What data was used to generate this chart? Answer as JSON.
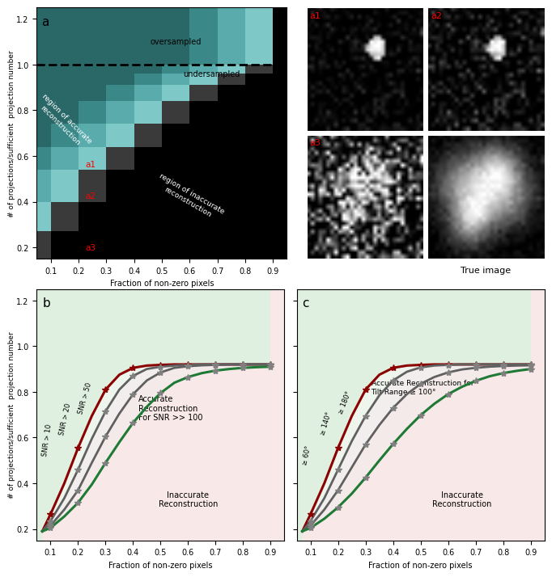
{
  "xlabel": "Fraction of non-zero pixels",
  "ylabel": "# of projections/sufficient  projection number",
  "xlim": [
    0.05,
    0.95
  ],
  "ylim": [
    0.15,
    1.25
  ],
  "xticks": [
    0.1,
    0.2,
    0.3,
    0.4,
    0.5,
    0.6,
    0.7,
    0.8,
    0.9
  ],
  "yticks": [
    0.2,
    0.4,
    0.6,
    0.8,
    1.0,
    1.2
  ],
  "stair_y_bounds": [
    0.15,
    0.27,
    0.4,
    0.54,
    0.64,
    0.74,
    0.84,
    0.91,
    0.96,
    1.0
  ],
  "snr_b_x": [
    0.07,
    0.1,
    0.15,
    0.2,
    0.25,
    0.3,
    0.35,
    0.4,
    0.45,
    0.5,
    0.55,
    0.6,
    0.65,
    0.7,
    0.75,
    0.8,
    0.85,
    0.9
  ],
  "snr_b_high100": [
    0.19,
    0.265,
    0.4,
    0.555,
    0.695,
    0.81,
    0.875,
    0.905,
    0.915,
    0.918,
    0.92,
    0.92,
    0.92,
    0.92,
    0.92,
    0.92,
    0.92,
    0.92
  ],
  "snr_b_50": [
    0.19,
    0.235,
    0.335,
    0.46,
    0.595,
    0.715,
    0.81,
    0.87,
    0.9,
    0.91,
    0.915,
    0.918,
    0.92,
    0.92,
    0.92,
    0.92,
    0.92,
    0.92
  ],
  "snr_b_20": [
    0.19,
    0.215,
    0.285,
    0.37,
    0.49,
    0.605,
    0.705,
    0.79,
    0.85,
    0.885,
    0.905,
    0.912,
    0.916,
    0.918,
    0.92,
    0.92,
    0.92,
    0.92
  ],
  "snr_b_10": [
    0.19,
    0.205,
    0.255,
    0.315,
    0.395,
    0.49,
    0.58,
    0.665,
    0.735,
    0.795,
    0.84,
    0.865,
    0.882,
    0.893,
    0.9,
    0.905,
    0.908,
    0.91
  ],
  "snr_c_x": [
    0.07,
    0.1,
    0.15,
    0.2,
    0.25,
    0.3,
    0.35,
    0.4,
    0.45,
    0.5,
    0.55,
    0.6,
    0.65,
    0.7,
    0.75,
    0.8,
    0.85,
    0.9
  ],
  "snr_c_100": [
    0.19,
    0.265,
    0.4,
    0.555,
    0.695,
    0.81,
    0.875,
    0.905,
    0.915,
    0.918,
    0.92,
    0.92,
    0.92,
    0.92,
    0.92,
    0.92,
    0.92,
    0.92
  ],
  "snr_c_140": [
    0.19,
    0.235,
    0.335,
    0.46,
    0.585,
    0.695,
    0.785,
    0.85,
    0.888,
    0.907,
    0.915,
    0.918,
    0.92,
    0.92,
    0.92,
    0.92,
    0.92,
    0.92
  ],
  "snr_c_180": [
    0.19,
    0.215,
    0.285,
    0.37,
    0.47,
    0.57,
    0.655,
    0.73,
    0.79,
    0.835,
    0.865,
    0.885,
    0.898,
    0.905,
    0.91,
    0.913,
    0.915,
    0.916
  ],
  "snr_c_60": [
    0.19,
    0.205,
    0.245,
    0.295,
    0.355,
    0.425,
    0.5,
    0.572,
    0.638,
    0.698,
    0.748,
    0.79,
    0.822,
    0.848,
    0.868,
    0.882,
    0.892,
    0.9
  ],
  "color_green": "#1e7a35",
  "color_dark_red": "#8b0000",
  "color_gray_med": "#606060",
  "color_gray_light": "#808080",
  "color_bg_green": "#dff0e0",
  "color_bg_pink": "#f8e8e8",
  "color_teal_bright": "#7ec8c8",
  "color_teal_mid": "#5aacac",
  "color_teal_dark": "#3a8888",
  "color_gray_tile": "#505050",
  "true_image_text": "True image"
}
